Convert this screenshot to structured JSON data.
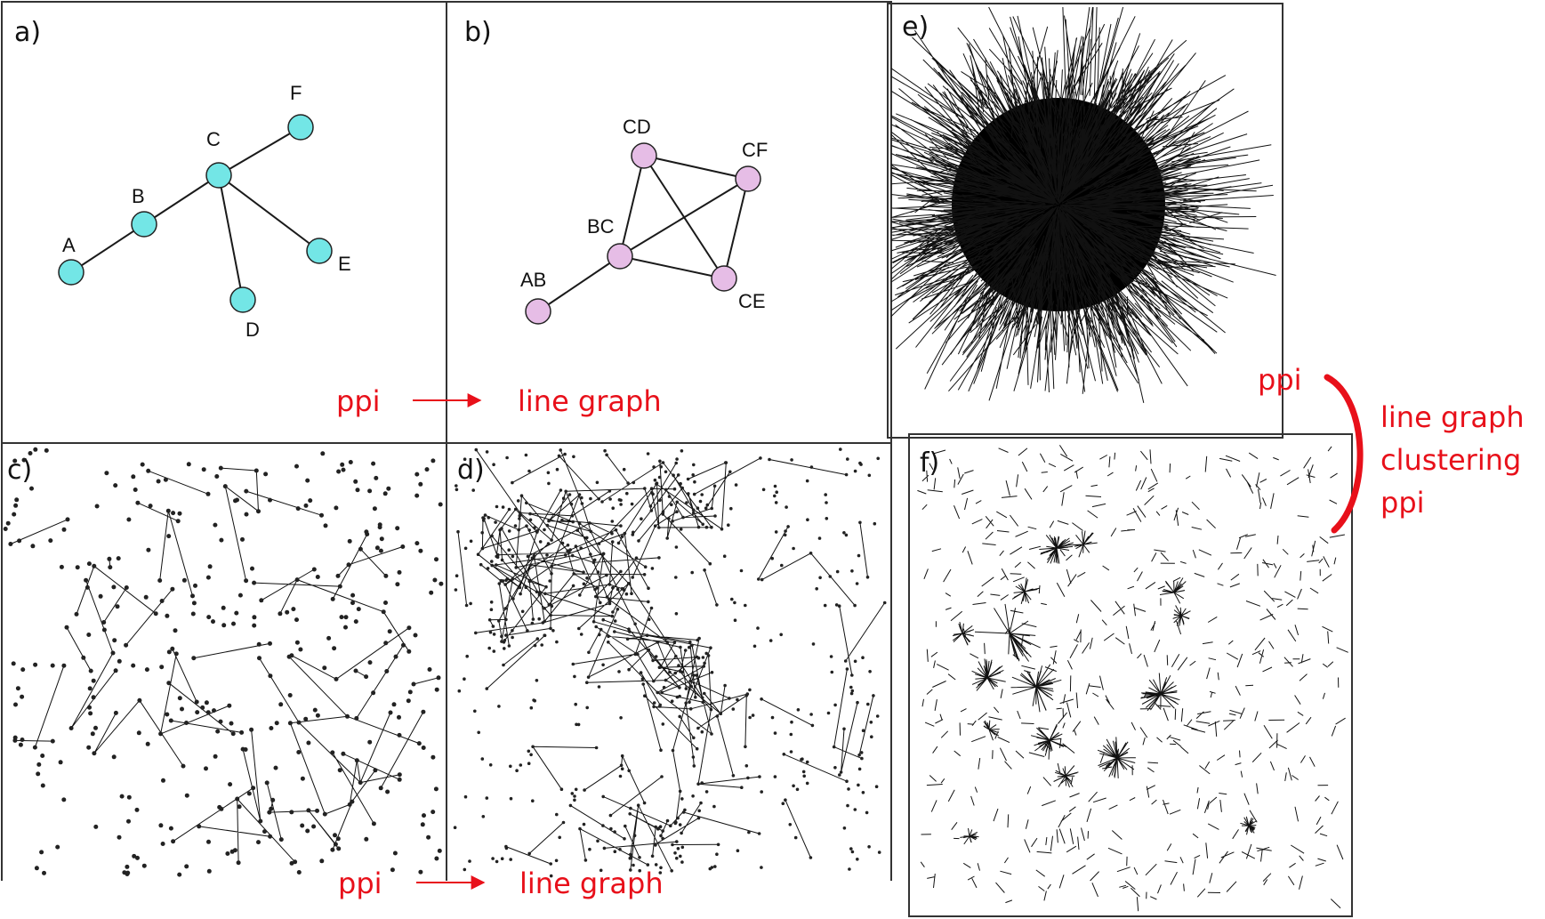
{
  "panels": {
    "a": {
      "label": "a)",
      "nodes": [
        {
          "id": "A",
          "label": "A"
        },
        {
          "id": "B",
          "label": "B"
        },
        {
          "id": "C",
          "label": "C"
        },
        {
          "id": "D",
          "label": "D"
        },
        {
          "id": "E",
          "label": "E"
        },
        {
          "id": "F",
          "label": "F"
        }
      ],
      "edges": [
        [
          "A",
          "B"
        ],
        [
          "B",
          "C"
        ],
        [
          "C",
          "F"
        ],
        [
          "C",
          "E"
        ],
        [
          "C",
          "D"
        ]
      ],
      "node_color": "#73e6e6"
    },
    "b": {
      "label": "b)",
      "nodes": [
        {
          "id": "AB",
          "label": "AB"
        },
        {
          "id": "BC",
          "label": "BC"
        },
        {
          "id": "CD",
          "label": "CD"
        },
        {
          "id": "CF",
          "label": "CF"
        },
        {
          "id": "CE",
          "label": "CE"
        }
      ],
      "edges": [
        [
          "AB",
          "BC"
        ],
        [
          "BC",
          "CD"
        ],
        [
          "BC",
          "CF"
        ],
        [
          "BC",
          "CE"
        ],
        [
          "CD",
          "CF"
        ],
        [
          "CD",
          "CE"
        ],
        [
          "CF",
          "CE"
        ]
      ],
      "node_color": "#e6bde6"
    },
    "c": {
      "label": "c)"
    },
    "d": {
      "label": "d)"
    },
    "e": {
      "label": "e)"
    },
    "f": {
      "label": "f)"
    }
  },
  "annotations": {
    "top_left": "ppi",
    "top_right": "line graph",
    "bottom_left": "ppi",
    "bottom_right": "line graph",
    "side_top": "ppi",
    "side_lines": [
      "line graph",
      "clustering",
      "ppi"
    ]
  },
  "colors": {
    "arrow": "#e8101a",
    "text_red": "#e8101a"
  }
}
